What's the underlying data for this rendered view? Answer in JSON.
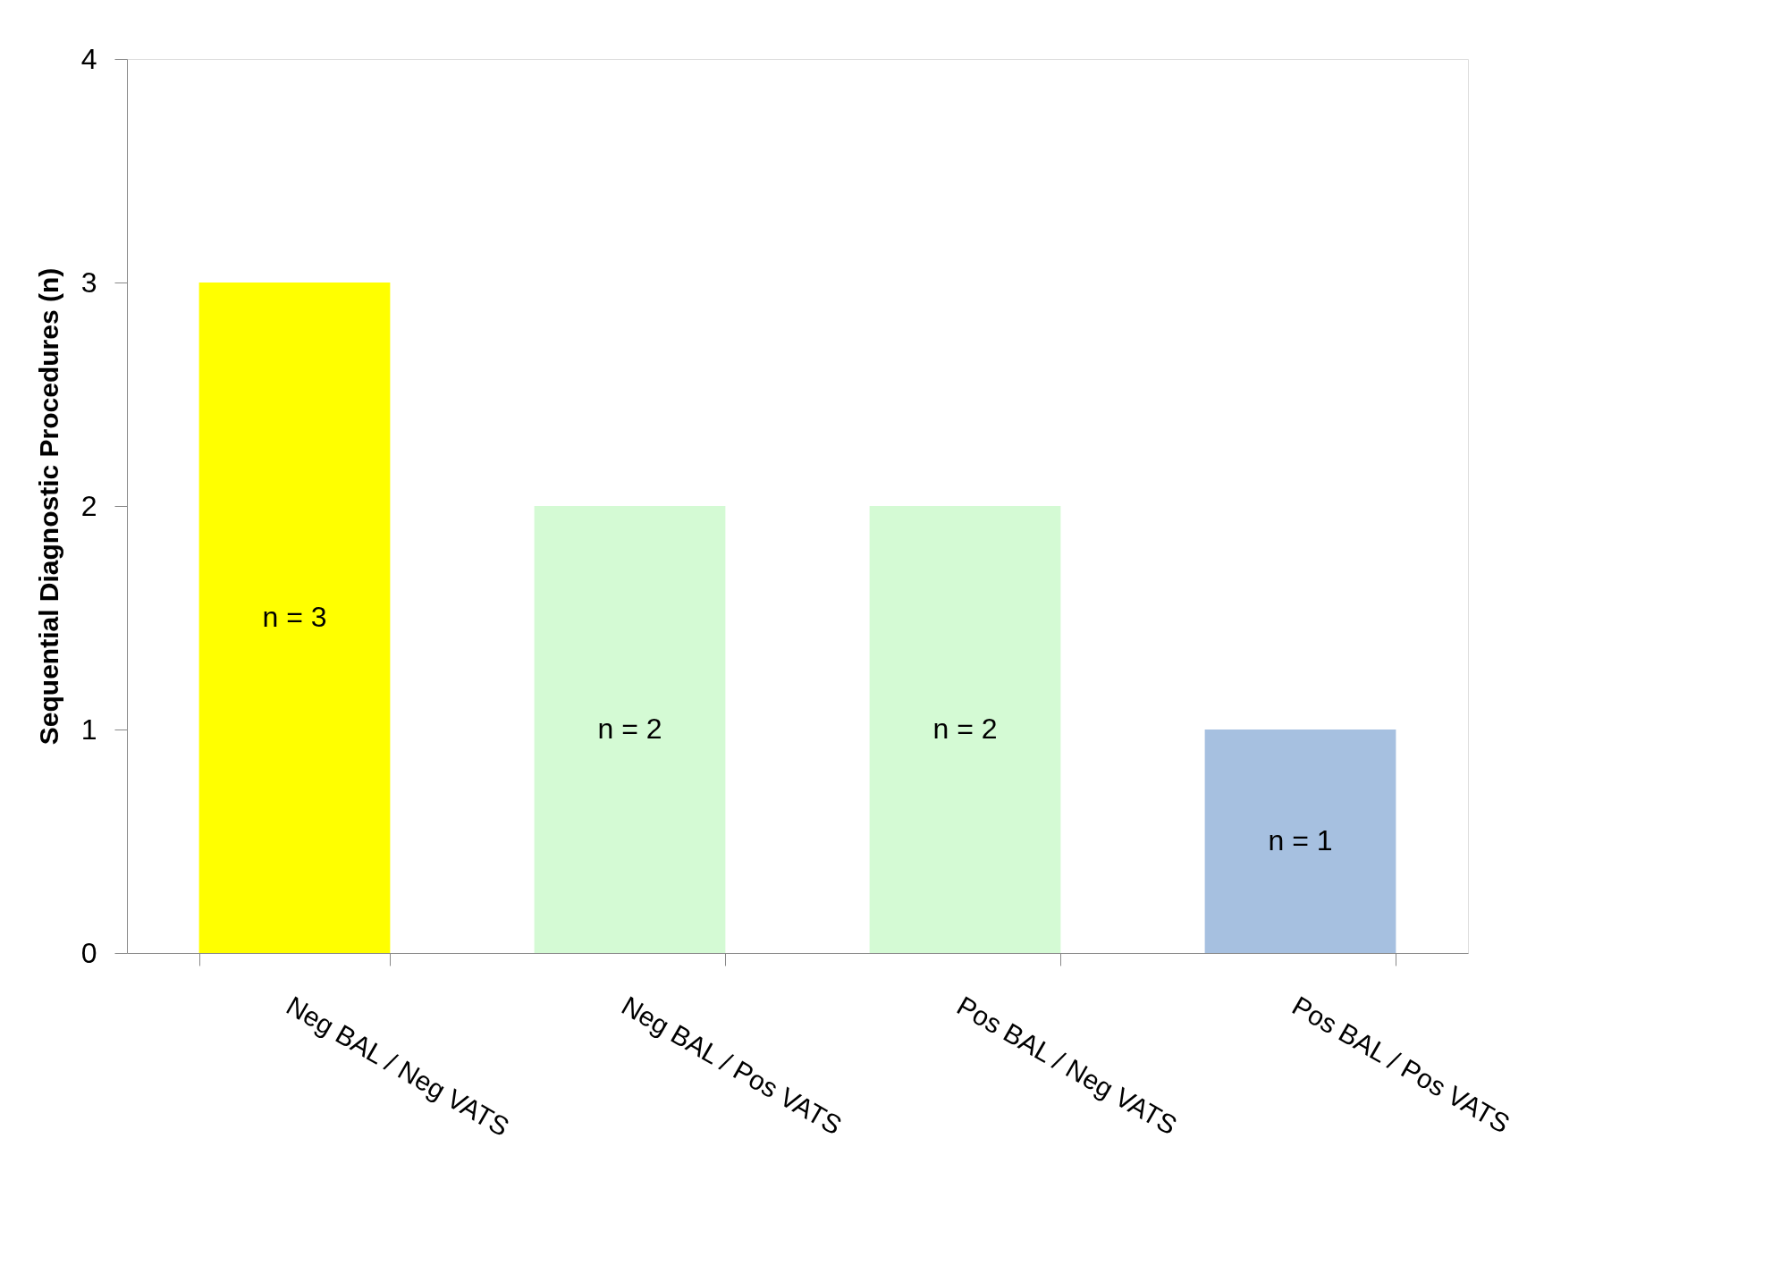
{
  "chart_data": {
    "type": "bar",
    "ylabel": "Sequential Diagnostic Procedures (n)",
    "categories": [
      "Neg BAL / Neg VATS",
      "Neg BAL / Pos VATS",
      "Pos BAL / Neg VATS",
      "Pos BAL / Pos VATS"
    ],
    "values": [
      3,
      2,
      2,
      1
    ],
    "colors": [
      "#ffff00",
      "#d4fad4",
      "#d4fad4",
      "#a6c0e0"
    ],
    "value_labels": [
      "n = 3",
      "n = 2",
      "n = 2",
      "n = 1"
    ],
    "ylim": [
      0,
      4
    ],
    "yticks": [
      0,
      1,
      2,
      3,
      4
    ],
    "grid": false
  }
}
